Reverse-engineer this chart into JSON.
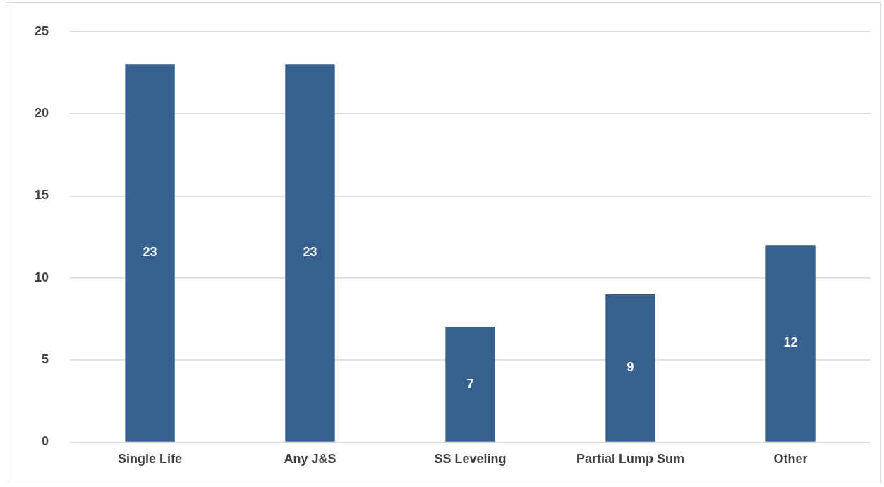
{
  "chart_data": {
    "type": "bar",
    "categories": [
      "Single Life",
      "Any J&S",
      "SS Leveling",
      "Partial Lump Sum",
      "Other"
    ],
    "values": [
      23,
      23,
      7,
      9,
      12
    ],
    "color": "#36608f",
    "ylim": [
      0,
      25
    ],
    "yticks": [
      0,
      5,
      10,
      15,
      20,
      25
    ],
    "grid": "y",
    "data_labels": true,
    "legend": false
  }
}
